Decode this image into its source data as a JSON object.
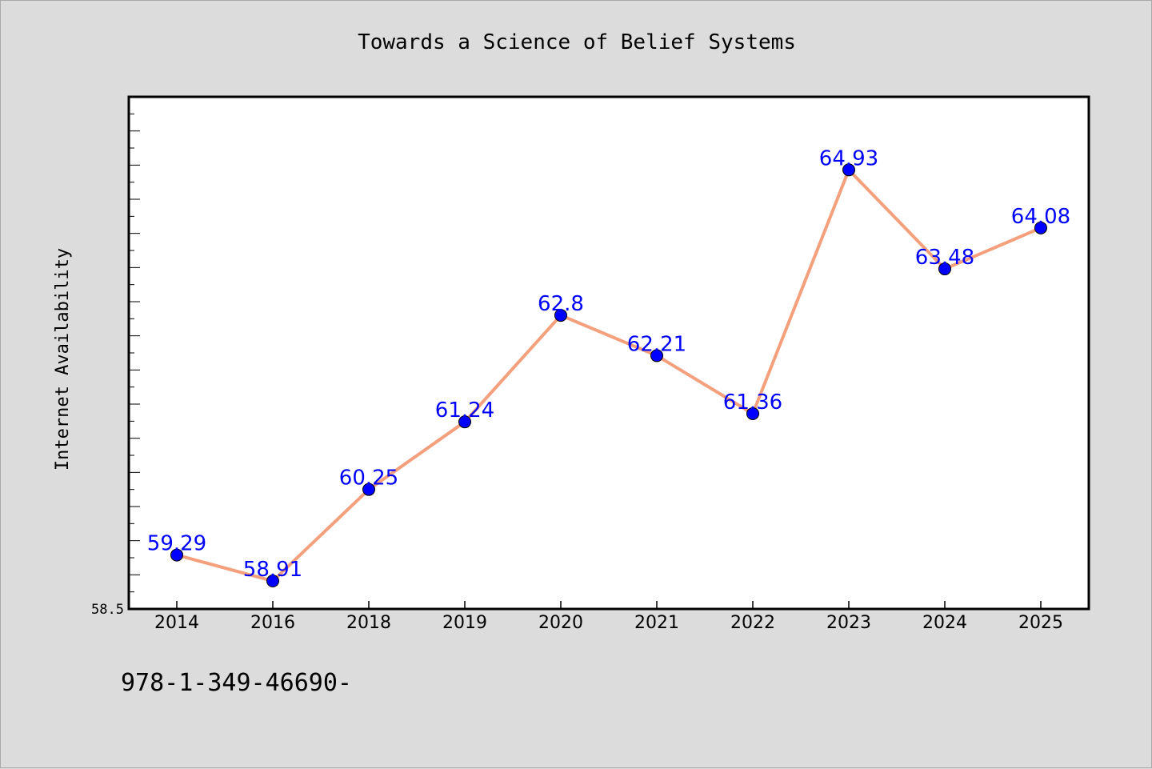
{
  "chart_data": {
    "type": "line",
    "title": "Towards a Science of Belief Systems",
    "xlabel": "",
    "ylabel": "Internet Availability",
    "categories": [
      "2014",
      "2016",
      "2018",
      "2019",
      "2020",
      "2021",
      "2022",
      "2023",
      "2024",
      "2025"
    ],
    "series": [
      {
        "values": [
          59.29,
          58.91,
          60.25,
          61.24,
          62.8,
          62.21,
          61.36,
          64.93,
          63.48,
          64.08
        ],
        "data_labels": [
          "59.29",
          "58.91",
          "60.25",
          "61.24",
          "62.8",
          "62.21",
          "61.36",
          "64.93",
          "63.48",
          "64.08"
        ],
        "line_color": "#f4a07c",
        "marker_color": "#0000ff"
      }
    ],
    "ylim": [
      58.5,
      66.0
    ],
    "y_tick_labels": [
      "58.5"
    ],
    "grid": false,
    "legend": "none"
  },
  "footer": {
    "text": "978-1-349-46690-"
  }
}
